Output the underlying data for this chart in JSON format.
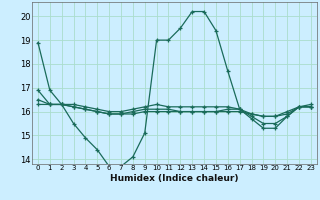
{
  "xlabel": "Humidex (Indice chaleur)",
  "bg_color": "#cceeff",
  "grid_color": "#aaddcc",
  "line_color": "#1a6b5a",
  "xlim": [
    -0.5,
    23.5
  ],
  "ylim": [
    13.8,
    20.6
  ],
  "yticks": [
    14,
    15,
    16,
    17,
    18,
    19,
    20
  ],
  "xticks": [
    0,
    1,
    2,
    3,
    4,
    5,
    6,
    7,
    8,
    9,
    10,
    11,
    12,
    13,
    14,
    15,
    16,
    17,
    18,
    19,
    20,
    21,
    22,
    23
  ],
  "curves": [
    [
      18.9,
      16.9,
      16.3,
      15.5,
      14.9,
      14.4,
      13.7,
      13.7,
      14.1,
      15.1,
      19.0,
      19.0,
      19.5,
      20.2,
      20.2,
      19.4,
      17.7,
      16.1,
      15.7,
      15.3,
      15.3,
      15.8,
      16.2,
      16.2
    ],
    [
      16.9,
      16.3,
      16.3,
      16.3,
      16.2,
      16.1,
      16.0,
      16.0,
      16.1,
      16.2,
      16.3,
      16.2,
      16.2,
      16.2,
      16.2,
      16.2,
      16.2,
      16.1,
      15.8,
      15.5,
      15.5,
      15.8,
      16.2,
      16.2
    ],
    [
      16.5,
      16.3,
      16.3,
      16.2,
      16.1,
      16.0,
      15.9,
      15.9,
      16.0,
      16.1,
      16.1,
      16.1,
      16.0,
      16.0,
      16.0,
      16.0,
      16.1,
      16.1,
      15.9,
      15.8,
      15.8,
      16.0,
      16.2,
      16.2
    ],
    [
      16.3,
      16.3,
      16.3,
      16.2,
      16.1,
      16.0,
      15.9,
      15.9,
      15.9,
      16.0,
      16.0,
      16.0,
      16.0,
      16.0,
      16.0,
      16.0,
      16.0,
      16.0,
      15.9,
      15.8,
      15.8,
      15.9,
      16.2,
      16.3
    ]
  ]
}
